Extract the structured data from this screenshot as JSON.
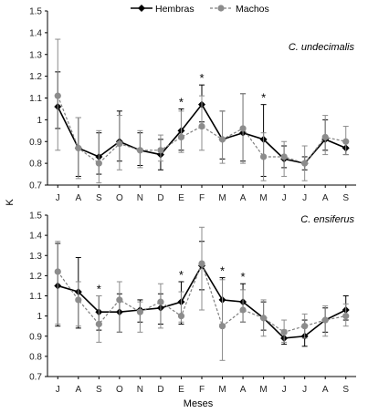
{
  "legend": [
    {
      "label": "Hembras",
      "color": "#000000",
      "dash": "solid",
      "marker": "diamond"
    },
    {
      "label": "Machos",
      "color": "#7f7f7f",
      "dash": "dashed",
      "marker": "circle"
    }
  ],
  "xlabel": "Meses",
  "ylabel": "K",
  "chart_data": [
    {
      "type": "line",
      "title": "C. undecimalis",
      "categories": [
        "J",
        "A",
        "S",
        "O",
        "N",
        "D",
        "E",
        "F",
        "M",
        "A",
        "M",
        "J",
        "J",
        "A",
        "S"
      ],
      "ylim": [
        0.7,
        1.5
      ],
      "yticks": [
        "0.7",
        "0.8",
        "0.9",
        "1",
        "1.1",
        "1.2",
        "1.3",
        "1.4",
        "1.5"
      ],
      "series": [
        {
          "name": "Hembras",
          "values": [
            1.06,
            0.87,
            0.83,
            0.9,
            0.86,
            0.84,
            0.95,
            1.07,
            0.91,
            0.94,
            0.91,
            0.82,
            0.8,
            0.91,
            0.87
          ],
          "err_low": [
            0.96,
            0.74,
            0.75,
            0.81,
            0.79,
            0.77,
            0.86,
            0.99,
            0.82,
            0.81,
            0.74,
            0.78,
            0.77,
            0.86,
            0.84
          ],
          "err_high": [
            1.22,
            1.01,
            0.94,
            1.04,
            0.94,
            0.91,
            1.05,
            1.16,
            1.04,
            1.12,
            1.07,
            0.88,
            0.83,
            1.0,
            0.9
          ]
        },
        {
          "name": "Machos",
          "values": [
            1.11,
            0.87,
            0.8,
            0.89,
            0.86,
            0.86,
            0.92,
            0.97,
            0.91,
            0.96,
            0.83,
            0.83,
            0.8,
            0.92,
            0.9
          ],
          "err_low": [
            0.86,
            0.73,
            0.71,
            0.77,
            0.78,
            0.81,
            0.85,
            0.86,
            0.8,
            0.8,
            0.72,
            0.74,
            0.72,
            0.84,
            0.84
          ],
          "err_high": [
            1.37,
            1.01,
            0.95,
            1.02,
            0.95,
            0.93,
            1.04,
            1.11,
            1.04,
            1.12,
            0.94,
            0.9,
            0.88,
            1.02,
            0.97
          ]
        }
      ],
      "significance": [
        6,
        7,
        10
      ]
    },
    {
      "type": "line",
      "title": "C. ensiferus",
      "categories": [
        "J",
        "A",
        "S",
        "O",
        "N",
        "D",
        "E",
        "F",
        "M",
        "A",
        "M",
        "J",
        "J",
        "A",
        "S"
      ],
      "ylim": [
        0.7,
        1.5
      ],
      "yticks": [
        "0.7",
        "0.8",
        "0.9",
        "1",
        "1.1",
        "1.2",
        "1.3",
        "1.4",
        "1.5"
      ],
      "series": [
        {
          "name": "Hembras",
          "values": [
            1.15,
            1.12,
            1.02,
            1.02,
            1.03,
            1.04,
            1.07,
            1.25,
            1.08,
            1.07,
            0.99,
            0.89,
            0.9,
            0.98,
            1.03
          ],
          "err_low": [
            0.95,
            0.94,
            0.93,
            0.92,
            0.97,
            0.96,
            0.96,
            1.13,
            0.96,
            0.97,
            0.93,
            0.86,
            0.85,
            0.92,
            0.98
          ],
          "err_high": [
            1.36,
            1.29,
            1.1,
            1.11,
            1.08,
            1.11,
            1.17,
            1.37,
            1.19,
            1.16,
            1.07,
            0.93,
            0.98,
            1.04,
            1.1
          ]
        },
        {
          "name": "Machos",
          "values": [
            1.22,
            1.08,
            0.96,
            1.08,
            1.02,
            1.07,
            1.0,
            1.26,
            0.95,
            1.03,
            0.99,
            0.92,
            0.95,
            0.98,
            1.0
          ],
          "err_low": [
            0.96,
            0.95,
            0.87,
            0.92,
            0.92,
            0.94,
            0.97,
            1.03,
            0.78,
            0.97,
            0.9,
            0.87,
            0.89,
            0.9,
            0.95
          ],
          "err_high": [
            1.37,
            1.17,
            1.1,
            1.17,
            1.07,
            1.16,
            1.12,
            1.44,
            1.18,
            1.13,
            1.08,
            0.98,
            1.01,
            1.05,
            1.06
          ]
        }
      ],
      "significance": [
        2,
        6,
        8,
        9
      ]
    }
  ]
}
